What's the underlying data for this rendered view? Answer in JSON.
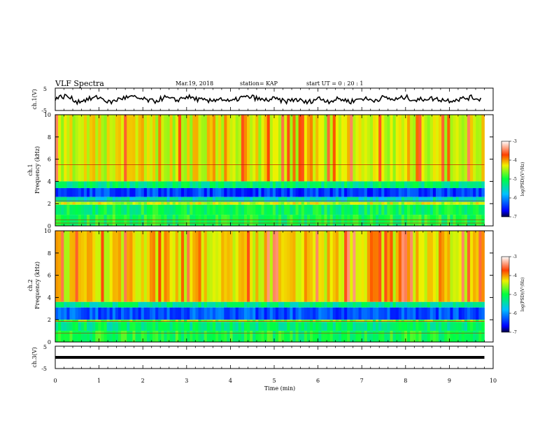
{
  "header": {
    "title": "VLF Spectra",
    "date": "Mar.19, 2018",
    "station": "station= KAP",
    "start_ut": "start  UT =   0  : 20 : 1"
  },
  "chart_data": [
    {
      "type": "line",
      "ylabel": "ch.1(V)",
      "ylim": [
        -5,
        5
      ],
      "yticks": [
        "5",
        "-5"
      ],
      "xlim": [
        0,
        10
      ],
      "description_series": "voltage waveform ch.1",
      "series": [
        {
          "x": [
            0,
            0.25,
            0.5,
            0.75,
            1,
            1.25,
            1.5,
            1.75,
            2,
            2.25,
            2.5,
            2.75,
            3,
            3.25,
            3.5,
            3.75,
            4,
            4.25,
            4.5,
            4.75,
            5,
            5.25,
            5.5,
            5.75,
            6,
            6.25,
            6.5,
            6.75,
            7,
            7.25,
            7.5,
            7.75,
            8,
            8.25,
            8.5,
            8.75,
            9,
            9.25,
            9.5,
            9.75
          ],
          "y": [
            0.5,
            1.5,
            -1,
            0,
            1,
            -1.5,
            0.5,
            1,
            0,
            -1,
            0.8,
            -0.5,
            1.2,
            0,
            -1,
            0.5,
            -1.2,
            0.8,
            1,
            -0.5,
            0.2,
            -1,
            0,
            -1.5,
            0.5,
            -0.8,
            0.2,
            -1,
            0.5,
            -0.5,
            0.8,
            -0.2,
            1,
            -0.5,
            0.5,
            0,
            -0.5,
            0.2,
            0.8,
            0
          ]
        }
      ]
    },
    {
      "type": "heatmap",
      "ylabel": "ch.1\nFrequency (kHz)",
      "ylim": [
        0,
        10
      ],
      "yticks": [
        "0",
        "2",
        "4",
        "6",
        "8",
        "10"
      ],
      "xlim": [
        0,
        10
      ],
      "colorbar": {
        "label": "log(PSD)(V²/Hz)",
        "min": -7,
        "max": -3,
        "ticks": [
          "-3",
          "-4",
          "-5",
          "-6",
          "-7"
        ]
      },
      "bands": [
        {
          "f_low": 4.0,
          "f_high": 10.0,
          "level": -4.6
        },
        {
          "f_low": 3.4,
          "f_high": 4.0,
          "level": -5.2
        },
        {
          "f_low": 2.6,
          "f_high": 3.4,
          "level": -6.4
        },
        {
          "f_low": 2.15,
          "f_high": 2.6,
          "level": -5.5
        },
        {
          "f_low": 1.9,
          "f_high": 2.15,
          "level": -4.4
        },
        {
          "f_low": 1.0,
          "f_high": 1.9,
          "level": -5.1
        },
        {
          "f_low": 0.0,
          "f_high": 1.0,
          "level": -5.0
        }
      ],
      "lines_khz": [
        5.5,
        2.25,
        0.55,
        0.25
      ]
    },
    {
      "type": "heatmap",
      "ylabel": "ch.2\nFrequency (kHz)",
      "ylim": [
        0,
        10
      ],
      "yticks": [
        "0",
        "2",
        "4",
        "6",
        "8",
        "10"
      ],
      "xlim": [
        0,
        10
      ],
      "colorbar": {
        "label": "log(PSD)(V²/Hz)",
        "min": -7,
        "max": -3,
        "ticks": [
          "-3",
          "-4",
          "-5",
          "-6",
          "-7"
        ]
      },
      "bands": [
        {
          "f_low": 3.6,
          "f_high": 10.0,
          "level": -4.5
        },
        {
          "f_low": 3.1,
          "f_high": 3.6,
          "level": -5.3
        },
        {
          "f_low": 2.0,
          "f_high": 3.1,
          "level": -6.3
        },
        {
          "f_low": 1.8,
          "f_high": 2.0,
          "level": -4.7
        },
        {
          "f_low": 1.0,
          "f_high": 1.8,
          "level": -5.2
        },
        {
          "f_low": 0.0,
          "f_high": 1.0,
          "level": -5.0
        }
      ],
      "lines_khz": [
        1.85,
        0.8
      ]
    },
    {
      "type": "line",
      "ylabel": "ch.3(V)",
      "ylim": [
        -5,
        5
      ],
      "yticks": [
        "5",
        "-5"
      ],
      "xlim": [
        0,
        10
      ],
      "xlabel": "Time (min)",
      "xticks": [
        "0",
        "1",
        "2",
        "3",
        "4",
        "5",
        "6",
        "7",
        "8",
        "9",
        "10"
      ],
      "series": [
        {
          "x": [
            0,
            9.8
          ],
          "y": [
            0,
            0
          ]
        }
      ]
    }
  ]
}
